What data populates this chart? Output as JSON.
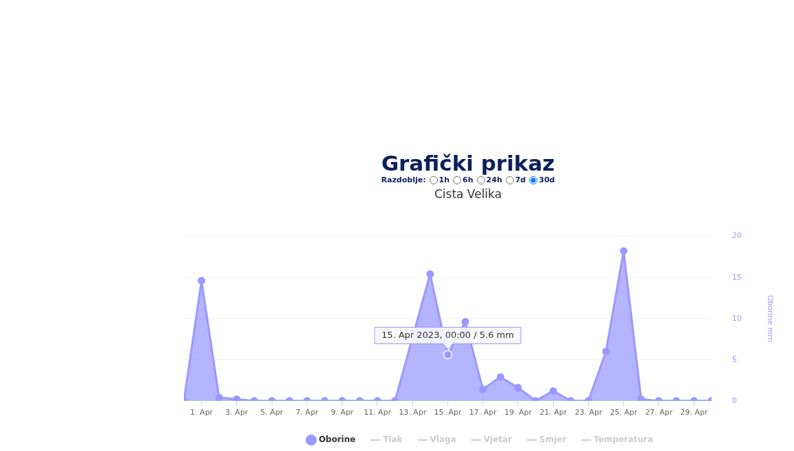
{
  "chart_data": {
    "type": "area",
    "title": "Grafički prikaz",
    "subtitle": "Cista Velika",
    "ylabel": "Oborine mm",
    "x": [
      "2023-03-31",
      "2023-04-01",
      "2023-04-02",
      "2023-04-03",
      "2023-04-04",
      "2023-04-05",
      "2023-04-06",
      "2023-04-07",
      "2023-04-08",
      "2023-04-09",
      "2023-04-10",
      "2023-04-11",
      "2023-04-12",
      "2023-04-14",
      "2023-04-15",
      "2023-04-16",
      "2023-04-17",
      "2023-04-18",
      "2023-04-19",
      "2023-04-20",
      "2023-04-21",
      "2023-04-22",
      "2023-04-23",
      "2023-04-24",
      "2023-04-25",
      "2023-04-26",
      "2023-04-27",
      "2023-04-28",
      "2023-04-29",
      "2023-04-30"
    ],
    "series": [
      {
        "name": "Oborine",
        "color": "#9999ff",
        "values": [
          0,
          14.6,
          0.4,
          0.2,
          0,
          0,
          0,
          0,
          0,
          0,
          0,
          0,
          0,
          15.4,
          5.6,
          9.6,
          1.4,
          2.9,
          1.6,
          0,
          1.2,
          0,
          0,
          6.0,
          18.2,
          0.2,
          0,
          0,
          0,
          0
        ]
      },
      {
        "name": "Tlak",
        "color": "#cccccc",
        "values": [
          null,
          null,
          null,
          null,
          null,
          null,
          null,
          null,
          null,
          null,
          null,
          null,
          null,
          null,
          null,
          null,
          null,
          null,
          null,
          null,
          null,
          null,
          null,
          null,
          null,
          null,
          null,
          null,
          null,
          null
        ]
      },
      {
        "name": "Vlaga",
        "color": "#cccccc",
        "values": [
          null,
          null,
          null,
          null,
          null,
          null,
          null,
          null,
          null,
          null,
          null,
          null,
          null,
          null,
          null,
          null,
          null,
          null,
          null,
          null,
          null,
          null,
          null,
          null,
          null,
          null,
          null,
          null,
          null,
          null
        ]
      },
      {
        "name": "Vjetar",
        "color": "#cccccc",
        "values": [
          null,
          null,
          null,
          null,
          null,
          null,
          null,
          null,
          null,
          null,
          null,
          null,
          null,
          null,
          null,
          null,
          null,
          null,
          null,
          null,
          null,
          null,
          null,
          null,
          null,
          null,
          null,
          null,
          null,
          null
        ]
      },
      {
        "name": "Smjer",
        "color": "#cccccc",
        "values": [
          null,
          null,
          null,
          null,
          null,
          null,
          null,
          null,
          null,
          null,
          null,
          null,
          null,
          null,
          null,
          null,
          null,
          null,
          null,
          null,
          null,
          null,
          null,
          null,
          null,
          null,
          null,
          null,
          null,
          null
        ]
      },
      {
        "name": "Temperatura",
        "color": "#cccccc",
        "values": [
          null,
          null,
          null,
          null,
          null,
          null,
          null,
          null,
          null,
          null,
          null,
          null,
          null,
          null,
          null,
          null,
          null,
          null,
          null,
          null,
          null,
          null,
          null,
          null,
          null,
          null,
          null,
          null,
          null,
          null
        ]
      }
    ],
    "xlim": [
      "2023-03-31",
      "2023-04-30"
    ],
    "xticks": [
      {
        "value": "2023-04-01",
        "label": "1. Apr"
      },
      {
        "value": "2023-04-03",
        "label": "3. Apr"
      },
      {
        "value": "2023-04-05",
        "label": "5. Apr"
      },
      {
        "value": "2023-04-07",
        "label": "7. Apr"
      },
      {
        "value": "2023-04-09",
        "label": "9. Apr"
      },
      {
        "value": "2023-04-11",
        "label": "11. Apr"
      },
      {
        "value": "2023-04-13",
        "label": "13. Apr"
      },
      {
        "value": "2023-04-15",
        "label": "15. Apr"
      },
      {
        "value": "2023-04-17",
        "label": "17. Apr"
      },
      {
        "value": "2023-04-19",
        "label": "19. Apr"
      },
      {
        "value": "2023-04-21",
        "label": "21. Apr"
      },
      {
        "value": "2023-04-23",
        "label": "23. Apr"
      },
      {
        "value": "2023-04-25",
        "label": "25. Apr"
      },
      {
        "value": "2023-04-27",
        "label": "27. Apr"
      },
      {
        "value": "2023-04-29",
        "label": "29. Apr"
      }
    ],
    "ylim": [
      0,
      20
    ],
    "yticks": [
      0,
      5,
      10,
      15,
      20
    ],
    "grid": "y",
    "legend": "bottom",
    "marker": "circle",
    "annotations": [
      "Razdoblje:",
      "1h",
      "6h",
      "24h",
      "7d",
      "30d",
      {
        "text": "15. Apr 2023, 00:00 / 5.6 mm",
        "x": "2023-04-15",
        "y": 5.6
      }
    ]
  }
}
